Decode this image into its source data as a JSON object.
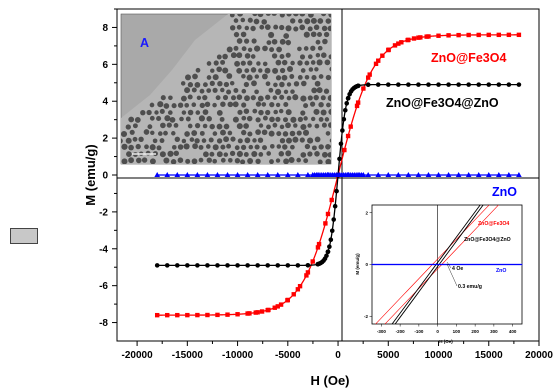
{
  "chart_data": {
    "type": "scatter",
    "xlabel": "H (Oe)",
    "ylabel": "M (emu/g)",
    "xlim": [
      -22000,
      20000
    ],
    "ylim": [
      -9,
      9
    ],
    "x_ticks": [
      -20000,
      -15000,
      -10000,
      -5000,
      0,
      5000,
      10000,
      15000,
      20000
    ],
    "y_ticks": [
      -8,
      -6,
      -4,
      -2,
      0,
      2,
      4,
      6,
      8
    ],
    "x_tick_labels": [
      "-20000",
      "-15000",
      "-10000",
      "-5000",
      "0",
      "5000",
      "10000",
      "15000",
      "20000"
    ],
    "y_tick_labels": [
      "-8",
      "-6",
      "-4",
      "-2",
      "0",
      "2",
      "4",
      "6",
      "8"
    ],
    "grid": false,
    "series": [
      {
        "name": "ZnO@Fe3O4",
        "color": "#ff0000",
        "marker": "square",
        "Ms": 7.6,
        "H0": 3500,
        "H_range": [
          -18000,
          18000
        ]
      },
      {
        "name": "ZnO@Fe3O4@ZnO",
        "color": "#000000",
        "marker": "circle",
        "Ms": 4.9,
        "H0": 800,
        "H_range": [
          -18000,
          18000
        ]
      },
      {
        "name": "ZnO",
        "color": "#0000ff",
        "marker": "triangle",
        "Ms": 0,
        "H0": 1000,
        "H_range": [
          -18000,
          18000
        ]
      }
    ],
    "inset_image": {
      "label": "A"
    },
    "inset_chart": {
      "xlabel": "H (Oe)",
      "ylabel": "M (emu/g)",
      "xlim": [
        -350,
        450
      ],
      "ylim": [
        -2.3,
        2.3
      ],
      "x_tick_labels": [
        "-300",
        "-200",
        "-100",
        "0",
        "100",
        "200",
        "300",
        "400"
      ],
      "x_ticks": [
        -300,
        -200,
        -100,
        0,
        100,
        200,
        300,
        400
      ],
      "y_tick_labels": [
        "-2",
        "0",
        "2"
      ],
      "y_ticks": [
        -2,
        0,
        2
      ],
      "series_labels": [
        "ZnO@Fe3O4",
        "ZnO@Fe3O4@ZnO",
        "ZnO"
      ],
      "annotations": [
        "4 Oe",
        "0.3 emu/g"
      ]
    }
  }
}
